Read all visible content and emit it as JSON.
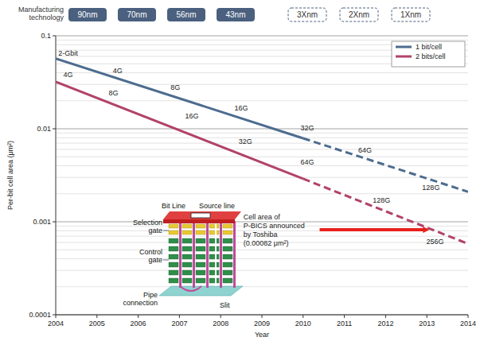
{
  "chart_data": {
    "type": "line",
    "header": {
      "title": "Manufacturing technology",
      "nodes": [
        "90nm",
        "70nm",
        "56nm",
        "43nm"
      ],
      "planned_nodes": [
        "3Xnm",
        "2Xnm",
        "1Xnm"
      ]
    },
    "x_label": "Year",
    "y_label": "Per-bit cell area (μm²)",
    "log": "y",
    "grid": true,
    "legend": "upper right",
    "xlim": [
      2004,
      2014
    ],
    "xticks": [
      2004,
      2005,
      2006,
      2007,
      2008,
      2009,
      2010,
      2011,
      2012,
      2013,
      2014
    ],
    "ylim": [
      0.0001,
      0.1
    ],
    "yticks": [
      0.0001,
      0.001,
      0.01,
      0.1
    ],
    "series": [
      {
        "name": "1 bit/cell",
        "color": "#4d6c8f",
        "line_style": "solid",
        "x": [
          2004,
          2010
        ],
        "values": [
          0.057,
          0.0079
        ],
        "point_labels": [
          {
            "text": "2-Gbit",
            "x": 2004.3,
            "y": 0.061
          },
          {
            "text": "4G",
            "x": 2005.5,
            "y": 0.04
          },
          {
            "text": "8G",
            "x": 2006.9,
            "y": 0.026
          },
          {
            "text": "16G",
            "x": 2008.5,
            "y": 0.0157
          },
          {
            "text": "32G",
            "x": 2010.1,
            "y": 0.0096
          },
          {
            "text": "64G",
            "x": 2011.5,
            "y": 0.0055
          },
          {
            "text": "128G",
            "x": 2013.1,
            "y": 0.0022
          }
        ]
      },
      {
        "color": "#4d6c8f",
        "line_style": "dashed",
        "x": [
          2010,
          2014
        ],
        "values": [
          0.0079,
          0.0021
        ]
      },
      {
        "name": "2 bits/cell",
        "color": "#b2426a",
        "line_style": "solid",
        "x": [
          2004,
          2010
        ],
        "values": [
          0.032,
          0.0029
        ],
        "point_labels": [
          {
            "text": "4G",
            "x": 2004.3,
            "y": 0.036
          },
          {
            "text": "8G",
            "x": 2005.4,
            "y": 0.0229
          },
          {
            "text": "16G",
            "x": 2007.3,
            "y": 0.0129
          },
          {
            "text": "32G",
            "x": 2008.6,
            "y": 0.0069
          },
          {
            "text": "64G",
            "x": 2010.1,
            "y": 0.0041
          },
          {
            "text": "128G",
            "x": 2011.9,
            "y": 0.0016
          },
          {
            "text": "256G",
            "x": 2013.2,
            "y": 0.00058
          }
        ]
      },
      {
        "color": "#b2426a",
        "line_style": "dashed",
        "x": [
          2010,
          2014
        ],
        "values": [
          0.0029,
          0.00058
        ]
      }
    ],
    "annotation": {
      "lines": [
        "Cell area of",
        "P-BICS announced",
        "by Toshiba",
        "(0.00082 μm²)"
      ],
      "text_x": 2008.55,
      "arrow_x": [
        2010.4,
        2013.1
      ],
      "arrow_y": 0.00082,
      "color": "#e8201c"
    },
    "inset": {
      "labels": [
        "Bit Line",
        "Source line",
        "Selection gate",
        "Control gate",
        "Pipe connection",
        "Slit"
      ]
    }
  }
}
